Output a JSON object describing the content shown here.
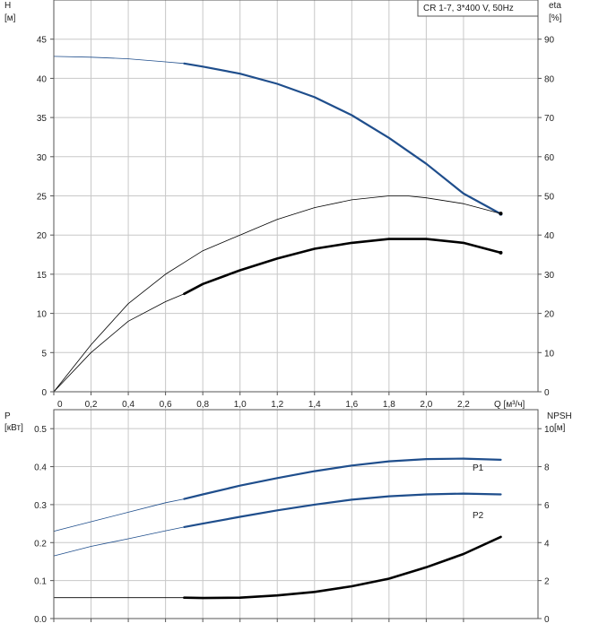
{
  "colors": {
    "blue": "#1f4e8c",
    "black": "#000000",
    "grid": "#c8c8c8",
    "frame": "#555555",
    "text": "#222222"
  },
  "chart_data": [
    {
      "type": "line",
      "legend_box": "CR 1-7, 3*400 V, 50Hz",
      "legend_position": "top-right",
      "xlabel": "Q [м³/ч]",
      "ylabel_left": "H",
      "ylabel_left_unit": "[м]",
      "ylabel_right": "eta",
      "ylabel_right_unit": "[%]",
      "xlim": [
        0,
        2.6
      ],
      "ylim_left": [
        0,
        50
      ],
      "ylim_right": [
        0,
        100
      ],
      "xticks": [
        "0",
        "0,2",
        "0,4",
        "0,6",
        "0,8",
        "1,0",
        "1,2",
        "1,4",
        "1,6",
        "1,8",
        "2,0",
        "2,2"
      ],
      "yticks_left": [
        "0",
        "5",
        "10",
        "15",
        "20",
        "25",
        "30",
        "35",
        "40",
        "45"
      ],
      "yticks_right": [
        "0",
        "10",
        "20",
        "30",
        "40",
        "50",
        "60",
        "70",
        "80",
        "90"
      ],
      "grid": true,
      "series": [
        {
          "axis": "left",
          "color": "blue",
          "thin_range": [
            0,
            0.7
          ],
          "points": [
            [
              0,
              42.8
            ],
            [
              0.2,
              42.7
            ],
            [
              0.4,
              42.5
            ],
            [
              0.6,
              42.1
            ],
            [
              0.7,
              41.9
            ],
            [
              0.8,
              41.5
            ],
            [
              1.0,
              40.6
            ],
            [
              1.2,
              39.3
            ],
            [
              1.4,
              37.6
            ],
            [
              1.6,
              35.3
            ],
            [
              1.8,
              32.4
            ],
            [
              2.0,
              29.1
            ],
            [
              2.2,
              25.3
            ],
            [
              2.4,
              22.7
            ]
          ]
        },
        {
          "axis": "right",
          "color": "black",
          "thin_range": [
            0,
            2.4
          ],
          "points": [
            [
              0,
              0
            ],
            [
              0.2,
              12
            ],
            [
              0.4,
              22.5
            ],
            [
              0.6,
              30
            ],
            [
              0.7,
              33
            ],
            [
              0.8,
              36
            ],
            [
              1.0,
              40
            ],
            [
              1.2,
              44
            ],
            [
              1.4,
              47
            ],
            [
              1.6,
              49
            ],
            [
              1.8,
              50
            ],
            [
              1.9,
              50
            ],
            [
              2.0,
              49.5
            ],
            [
              2.2,
              48
            ],
            [
              2.4,
              45.5
            ]
          ]
        },
        {
          "axis": "right",
          "color": "black",
          "thin_range": [
            0,
            0.7
          ],
          "points": [
            [
              0,
              0
            ],
            [
              0.2,
              10
            ],
            [
              0.4,
              18
            ],
            [
              0.6,
              23
            ],
            [
              0.7,
              25
            ],
            [
              0.8,
              27.5
            ],
            [
              1.0,
              31
            ],
            [
              1.2,
              34
            ],
            [
              1.4,
              36.5
            ],
            [
              1.6,
              38
            ],
            [
              1.8,
              39
            ],
            [
              2.0,
              39
            ],
            [
              2.2,
              38
            ],
            [
              2.4,
              35.5
            ]
          ]
        }
      ]
    },
    {
      "type": "line",
      "ylabel_left": "P",
      "ylabel_left_unit": "[кВт]",
      "ylabel_right": "NPSH",
      "ylabel_right_unit": "[м]",
      "xlim": [
        0,
        2.6
      ],
      "ylim_left": [
        0,
        0.55
      ],
      "ylim_right": [
        0,
        11
      ],
      "yticks_left": [
        "0.0",
        "0.1",
        "0.2",
        "0.3",
        "0.4",
        "0.5"
      ],
      "yticks_right": [
        "0",
        "2",
        "4",
        "6",
        "8",
        "10"
      ],
      "grid": true,
      "series": [
        {
          "name": "P1",
          "axis": "left",
          "color": "blue",
          "thin_range": [
            0,
            0.7
          ],
          "points": [
            [
              0,
              0.23
            ],
            [
              0.2,
              0.255
            ],
            [
              0.4,
              0.28
            ],
            [
              0.6,
              0.305
            ],
            [
              0.7,
              0.315
            ],
            [
              0.8,
              0.327
            ],
            [
              1.0,
              0.35
            ],
            [
              1.2,
              0.37
            ],
            [
              1.4,
              0.388
            ],
            [
              1.6,
              0.403
            ],
            [
              1.8,
              0.414
            ],
            [
              2.0,
              0.42
            ],
            [
              2.2,
              0.421
            ],
            [
              2.4,
              0.418
            ]
          ]
        },
        {
          "name": "P2",
          "axis": "left",
          "color": "blue",
          "thin_range": [
            0,
            0.7
          ],
          "points": [
            [
              0,
              0.165
            ],
            [
              0.2,
              0.19
            ],
            [
              0.4,
              0.21
            ],
            [
              0.6,
              0.231
            ],
            [
              0.7,
              0.241
            ],
            [
              0.8,
              0.25
            ],
            [
              1.0,
              0.268
            ],
            [
              1.2,
              0.285
            ],
            [
              1.4,
              0.3
            ],
            [
              1.6,
              0.313
            ],
            [
              1.8,
              0.322
            ],
            [
              2.0,
              0.327
            ],
            [
              2.2,
              0.329
            ],
            [
              2.4,
              0.327
            ]
          ]
        },
        {
          "axis": "right",
          "color": "black",
          "thin_range": [
            0,
            0.7
          ],
          "points": [
            [
              0,
              1.1
            ],
            [
              0.2,
              1.1
            ],
            [
              0.4,
              1.1
            ],
            [
              0.6,
              1.1
            ],
            [
              0.7,
              1.1
            ],
            [
              0.8,
              1.08
            ],
            [
              1.0,
              1.1
            ],
            [
              1.2,
              1.22
            ],
            [
              1.4,
              1.4
            ],
            [
              1.6,
              1.7
            ],
            [
              1.8,
              2.1
            ],
            [
              2.0,
              2.7
            ],
            [
              2.2,
              3.4
            ],
            [
              2.4,
              4.3
            ]
          ]
        }
      ]
    }
  ]
}
